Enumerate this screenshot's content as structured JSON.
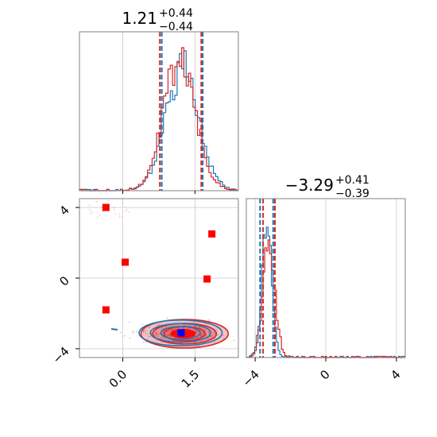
{
  "colors": {
    "blue": "#1f77b4",
    "red": "#d62728",
    "marker_red": "#ff0000",
    "marker_blue": "#0000ff"
  },
  "chart_data": {
    "type": "corner",
    "grid": true,
    "params": [
      {
        "title": {
          "value": "1.21",
          "plus": "+0.44",
          "minus": "−0.44"
        },
        "range": [
          -0.9,
          2.4
        ],
        "ticks": [
          0.0,
          1.5
        ],
        "tick_labels": [
          "0.0",
          "1.5"
        ],
        "quantiles_blue": [
          0.81,
          1.66
        ],
        "quantiles_red": [
          0.77,
          1.63
        ]
      },
      {
        "title": {
          "value": "−3.29",
          "plus": "+0.41",
          "minus": "−0.39"
        },
        "range": [
          -4.5,
          4.5
        ],
        "ticks": [
          -4,
          0,
          4
        ],
        "tick_labels": [
          "−4",
          "0",
          "4"
        ],
        "quantiles_blue": [
          -3.72,
          -2.98
        ],
        "quantiles_red": [
          -3.55,
          -2.88
        ]
      }
    ],
    "red_markers": [
      {
        "x": -0.35,
        "y": 4.0
      },
      {
        "x": 1.85,
        "y": 2.5
      },
      {
        "x": 0.05,
        "y": 0.9
      },
      {
        "x": 1.75,
        "y": -0.05
      },
      {
        "x": -0.35,
        "y": -1.8
      }
    ],
    "blue_marker": {
      "x": 1.21,
      "y": -3.1
    },
    "contour_center": {
      "x": 1.25,
      "y": -3.15
    }
  }
}
